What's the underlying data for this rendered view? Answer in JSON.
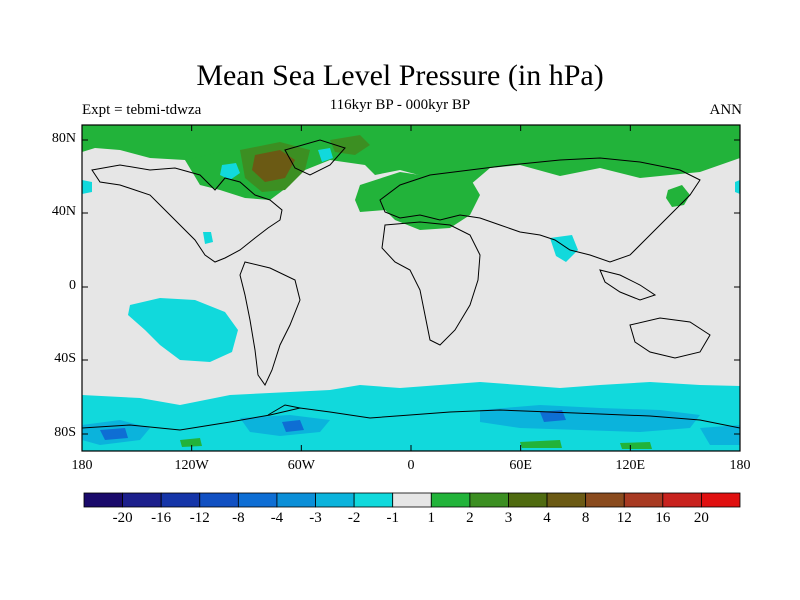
{
  "title": "Mean Sea Level Pressure (in hPa)",
  "subtitle_left": "Expt = tebmi-tdwza",
  "subtitle_center": "116kyr BP - 000kyr BP",
  "subtitle_right": "ANN",
  "x_ticks": [
    "180",
    "120W",
    "60W",
    "0",
    "60E",
    "120E",
    "180"
  ],
  "y_ticks": [
    "80N",
    "40N",
    "0",
    "40S",
    "80S"
  ],
  "colorbar": {
    "colors": [
      "#1a0a6b",
      "#1c1f8c",
      "#1535a8",
      "#1150c2",
      "#0e6ed4",
      "#0b8fd8",
      "#0bb3dc",
      "#11d9dc",
      "#e6e6e6",
      "#22b33a",
      "#3c8f22",
      "#4f6b10",
      "#6b5a14",
      "#8a4b1e",
      "#a83a22",
      "#c8221e",
      "#e01010"
    ],
    "labels": [
      "-20",
      "-16",
      "-12",
      "-8",
      "-4",
      "-3",
      "-2",
      "-1",
      "1",
      "2",
      "3",
      "4",
      "8",
      "12",
      "16",
      "20"
    ]
  },
  "map_colors": {
    "background": "#e6e6e6",
    "green": "#22b33a",
    "dark_green": "#3c8f22",
    "brown": "#6b5a14",
    "cyan": "#11d9dc",
    "light_blue": "#0bb3dc",
    "blue": "#0e6ed4"
  }
}
